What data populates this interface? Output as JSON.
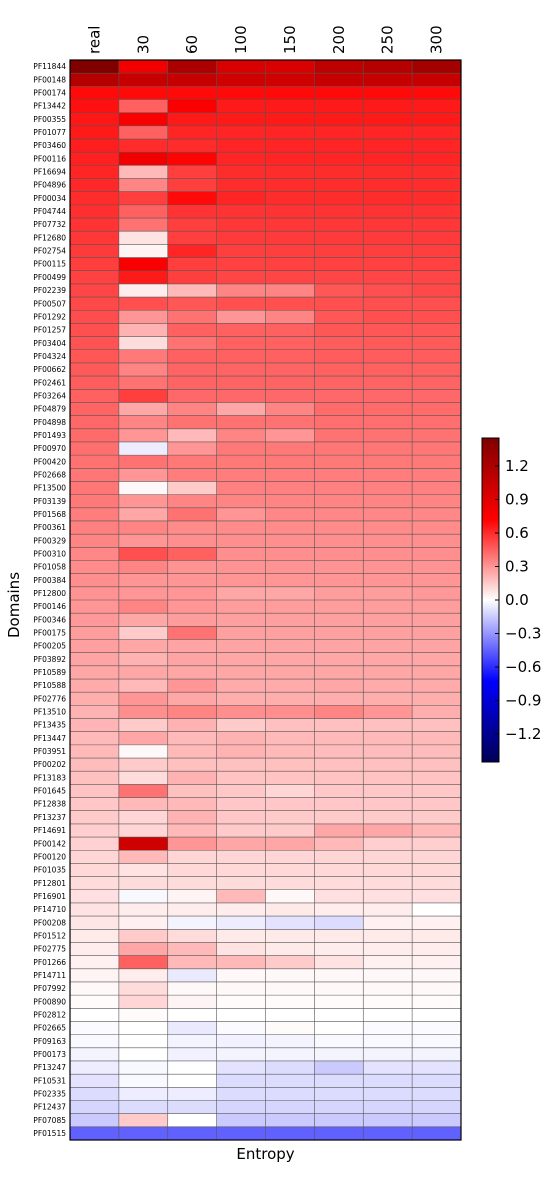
{
  "chart_data": {
    "type": "heatmap",
    "xlabel": "Entropy",
    "ylabel": "Domains",
    "columns": [
      "real",
      "30",
      "60",
      "100",
      "150",
      "200",
      "250",
      "300"
    ],
    "rows": [
      "PF11844",
      "PF00148",
      "PF00174",
      "PF13442",
      "PF00355",
      "PF01077",
      "PF03460",
      "PF00116",
      "PF16694",
      "PF04896",
      "PF00034",
      "PF04744",
      "PF07732",
      "PF12680",
      "PF02754",
      "PF00115",
      "PF00499",
      "PF02239",
      "PF00507",
      "PF01292",
      "PF01257",
      "PF03404",
      "PF04324",
      "PF00662",
      "PF02461",
      "PF03264",
      "PF04879",
      "PF04898",
      "PF01493",
      "PF00970",
      "PF00420",
      "PF02668",
      "PF13500",
      "PF03139",
      "PF01568",
      "PF00361",
      "PF00329",
      "PF00310",
      "PF01058",
      "PF00384",
      "PF12800",
      "PF00146",
      "PF00346",
      "PF00175",
      "PF00205",
      "PF03892",
      "PF10589",
      "PF10588",
      "PF02776",
      "PF13510",
      "PF13435",
      "PF13447",
      "PF03951",
      "PF00202",
      "PF13183",
      "PF01645",
      "PF12838",
      "PF13237",
      "PF14691",
      "PF00142",
      "PF00120",
      "PF01035",
      "PF12801",
      "PF16901",
      "PF14710",
      "PF00208",
      "PF01512",
      "PF02775",
      "PF01266",
      "PF14711",
      "PF07992",
      "PF00890",
      "PF02812",
      "PF02665",
      "PF09163",
      "PF00173",
      "PF13247",
      "PF10531",
      "PF02335",
      "PF12437",
      "PF07085",
      "PF01515"
    ],
    "values": [
      [
        1.45,
        0.8,
        1.2,
        0.95,
        0.95,
        1.1,
        1.15,
        1.25
      ],
      [
        1.15,
        1.05,
        1.05,
        1.0,
        1.0,
        1.05,
        1.05,
        1.05
      ],
      [
        0.7,
        0.7,
        0.7,
        0.7,
        0.7,
        0.7,
        0.7,
        0.7
      ],
      [
        0.68,
        0.45,
        0.75,
        0.65,
        0.65,
        0.65,
        0.65,
        0.65
      ],
      [
        0.66,
        0.75,
        0.65,
        0.65,
        0.65,
        0.65,
        0.65,
        0.65
      ],
      [
        0.65,
        0.45,
        0.62,
        0.62,
        0.62,
        0.62,
        0.62,
        0.62
      ],
      [
        0.64,
        0.6,
        0.6,
        0.62,
        0.62,
        0.62,
        0.62,
        0.62
      ],
      [
        0.63,
        0.8,
        0.72,
        0.62,
        0.62,
        0.62,
        0.62,
        0.62
      ],
      [
        0.62,
        0.2,
        0.55,
        0.6,
        0.6,
        0.6,
        0.6,
        0.6
      ],
      [
        0.61,
        0.35,
        0.55,
        0.6,
        0.6,
        0.6,
        0.6,
        0.6
      ],
      [
        0.6,
        0.55,
        0.7,
        0.62,
        0.6,
        0.6,
        0.6,
        0.6
      ],
      [
        0.59,
        0.45,
        0.58,
        0.58,
        0.58,
        0.58,
        0.58,
        0.58
      ],
      [
        0.58,
        0.4,
        0.55,
        0.57,
        0.57,
        0.57,
        0.57,
        0.57
      ],
      [
        0.57,
        0.08,
        0.55,
        0.56,
        0.56,
        0.56,
        0.56,
        0.56
      ],
      [
        0.56,
        0.03,
        0.62,
        0.55,
        0.55,
        0.55,
        0.55,
        0.55
      ],
      [
        0.55,
        0.75,
        0.55,
        0.54,
        0.54,
        0.54,
        0.54,
        0.54
      ],
      [
        0.54,
        0.65,
        0.55,
        0.53,
        0.53,
        0.53,
        0.53,
        0.53
      ],
      [
        0.53,
        0.05,
        0.2,
        0.35,
        0.35,
        0.48,
        0.5,
        0.52
      ],
      [
        0.52,
        0.5,
        0.48,
        0.5,
        0.5,
        0.5,
        0.5,
        0.5
      ],
      [
        0.51,
        0.3,
        0.4,
        0.3,
        0.35,
        0.48,
        0.5,
        0.5
      ],
      [
        0.5,
        0.22,
        0.45,
        0.45,
        0.45,
        0.48,
        0.48,
        0.48
      ],
      [
        0.49,
        0.1,
        0.4,
        0.45,
        0.45,
        0.46,
        0.47,
        0.47
      ],
      [
        0.48,
        0.38,
        0.45,
        0.45,
        0.45,
        0.46,
        0.46,
        0.46
      ],
      [
        0.47,
        0.35,
        0.44,
        0.44,
        0.44,
        0.45,
        0.45,
        0.45
      ],
      [
        0.46,
        0.4,
        0.44,
        0.44,
        0.44,
        0.44,
        0.44,
        0.44
      ],
      [
        0.45,
        0.55,
        0.43,
        0.43,
        0.43,
        0.43,
        0.43,
        0.43
      ],
      [
        0.44,
        0.25,
        0.35,
        0.25,
        0.35,
        0.42,
        0.42,
        0.42
      ],
      [
        0.43,
        0.35,
        0.4,
        0.4,
        0.4,
        0.41,
        0.41,
        0.41
      ],
      [
        0.42,
        0.3,
        0.2,
        0.35,
        0.3,
        0.4,
        0.4,
        0.4
      ],
      [
        0.41,
        -0.05,
        0.3,
        0.38,
        0.38,
        0.39,
        0.39,
        0.39
      ],
      [
        0.4,
        0.4,
        0.38,
        0.38,
        0.38,
        0.38,
        0.38,
        0.38
      ],
      [
        0.39,
        0.3,
        0.37,
        0.37,
        0.37,
        0.37,
        0.37,
        0.37
      ],
      [
        0.39,
        0.02,
        0.15,
        0.36,
        0.36,
        0.36,
        0.36,
        0.36
      ],
      [
        0.38,
        0.3,
        0.35,
        0.35,
        0.35,
        0.35,
        0.35,
        0.35
      ],
      [
        0.37,
        0.25,
        0.4,
        0.3,
        0.34,
        0.34,
        0.34,
        0.34
      ],
      [
        0.36,
        0.35,
        0.33,
        0.33,
        0.33,
        0.33,
        0.33,
        0.33
      ],
      [
        0.35,
        0.3,
        0.32,
        0.32,
        0.32,
        0.32,
        0.32,
        0.32
      ],
      [
        0.34,
        0.5,
        0.45,
        0.32,
        0.32,
        0.32,
        0.32,
        0.32
      ],
      [
        0.33,
        0.35,
        0.31,
        0.31,
        0.31,
        0.31,
        0.31,
        0.31
      ],
      [
        0.32,
        0.3,
        0.3,
        0.3,
        0.3,
        0.3,
        0.3,
        0.3
      ],
      [
        0.31,
        0.3,
        0.3,
        0.25,
        0.25,
        0.28,
        0.28,
        0.29
      ],
      [
        0.3,
        0.35,
        0.3,
        0.28,
        0.28,
        0.28,
        0.28,
        0.28
      ],
      [
        0.29,
        0.25,
        0.28,
        0.27,
        0.27,
        0.27,
        0.27,
        0.27
      ],
      [
        0.28,
        0.15,
        0.4,
        0.27,
        0.27,
        0.27,
        0.27,
        0.27
      ],
      [
        0.27,
        0.25,
        0.26,
        0.26,
        0.26,
        0.26,
        0.26,
        0.26
      ],
      [
        0.26,
        0.22,
        0.26,
        0.25,
        0.25,
        0.25,
        0.25,
        0.25
      ],
      [
        0.25,
        0.25,
        0.25,
        0.25,
        0.25,
        0.25,
        0.25,
        0.25
      ],
      [
        0.24,
        0.2,
        0.3,
        0.24,
        0.24,
        0.25,
        0.24,
        0.24
      ],
      [
        0.23,
        0.3,
        0.25,
        0.23,
        0.23,
        0.23,
        0.23,
        0.23
      ],
      [
        0.22,
        0.32,
        0.35,
        0.32,
        0.32,
        0.35,
        0.3,
        0.23
      ],
      [
        0.21,
        0.15,
        0.22,
        0.15,
        0.18,
        0.18,
        0.18,
        0.18
      ],
      [
        0.2,
        0.25,
        0.2,
        0.22,
        0.2,
        0.2,
        0.2,
        0.2
      ],
      [
        0.2,
        0.02,
        0.2,
        0.22,
        0.2,
        0.19,
        0.19,
        0.19
      ],
      [
        0.19,
        0.15,
        0.18,
        0.18,
        0.18,
        0.18,
        0.18,
        0.18
      ],
      [
        0.18,
        0.1,
        0.22,
        0.17,
        0.17,
        0.17,
        0.17,
        0.17
      ],
      [
        0.17,
        0.4,
        0.18,
        0.16,
        0.12,
        0.16,
        0.16,
        0.16
      ],
      [
        0.16,
        0.2,
        0.2,
        0.16,
        0.16,
        0.16,
        0.16,
        0.16
      ],
      [
        0.15,
        0.12,
        0.22,
        0.16,
        0.15,
        0.15,
        0.15,
        0.15
      ],
      [
        0.14,
        0.12,
        0.2,
        0.15,
        0.15,
        0.25,
        0.25,
        0.2
      ],
      [
        0.13,
        1.0,
        0.3,
        0.25,
        0.25,
        0.2,
        0.14,
        0.14
      ],
      [
        0.12,
        0.2,
        0.12,
        0.12,
        0.12,
        0.12,
        0.12,
        0.12
      ],
      [
        0.11,
        0.08,
        0.11,
        0.11,
        0.11,
        0.11,
        0.11,
        0.11
      ],
      [
        0.1,
        0.1,
        0.1,
        0.1,
        0.1,
        0.1,
        0.1,
        0.1
      ],
      [
        0.09,
        -0.02,
        0.03,
        0.2,
        0.02,
        0.09,
        0.09,
        0.09
      ],
      [
        0.08,
        0.05,
        0.05,
        0.05,
        0.06,
        0.05,
        0.05,
        0.0
      ],
      [
        0.07,
        0.04,
        -0.03,
        -0.05,
        -0.08,
        -0.1,
        0.04,
        0.04
      ],
      [
        0.06,
        0.15,
        0.1,
        0.06,
        0.06,
        0.06,
        0.06,
        0.06
      ],
      [
        0.05,
        0.25,
        0.2,
        0.08,
        0.06,
        0.05,
        0.05,
        0.05
      ],
      [
        0.04,
        0.45,
        0.2,
        0.2,
        0.15,
        0.08,
        0.04,
        0.04
      ],
      [
        0.03,
        0.05,
        -0.06,
        0.02,
        0.02,
        0.02,
        0.02,
        0.02
      ],
      [
        0.02,
        0.1,
        0.02,
        0.02,
        0.02,
        0.02,
        0.02,
        0.02
      ],
      [
        0.01,
        0.12,
        0.03,
        0.01,
        0.01,
        0.01,
        0.01,
        0.01
      ],
      [
        0.0,
        0.01,
        0.0,
        0.0,
        0.0,
        0.0,
        0.0,
        0.0
      ],
      [
        -0.01,
        0.0,
        -0.06,
        -0.01,
        0.01,
        0.0,
        -0.01,
        -0.01
      ],
      [
        -0.02,
        0.0,
        -0.03,
        -0.04,
        -0.03,
        -0.02,
        -0.02,
        -0.02
      ],
      [
        -0.03,
        0.0,
        -0.04,
        -0.03,
        -0.03,
        -0.03,
        -0.03,
        -0.03
      ],
      [
        -0.05,
        -0.02,
        0.0,
        -0.08,
        -0.1,
        -0.15,
        -0.08,
        -0.08
      ],
      [
        -0.08,
        -0.02,
        0.0,
        -0.1,
        -0.1,
        -0.1,
        -0.1,
        -0.1
      ],
      [
        -0.1,
        -0.05,
        -0.05,
        -0.1,
        -0.1,
        -0.1,
        -0.1,
        -0.1
      ],
      [
        -0.12,
        -0.1,
        -0.1,
        -0.12,
        -0.12,
        -0.12,
        -0.12,
        -0.12
      ],
      [
        -0.15,
        0.15,
        0.0,
        -0.15,
        -0.15,
        -0.15,
        -0.15,
        -0.15
      ],
      [
        -0.45,
        -0.45,
        -0.45,
        -0.45,
        -0.45,
        -0.45,
        -0.45,
        -0.45
      ]
    ],
    "vmin": -1.45,
    "vmax": 1.45,
    "colormap": [
      "#000055",
      "#0000ff",
      "#ffffff",
      "#ff0000",
      "#800000"
    ],
    "colorbar": {
      "ticks": [
        1.2,
        0.9,
        0.6,
        0.3,
        0.0,
        -0.3,
        -0.6,
        -0.9,
        -1.2
      ],
      "tick_labels": [
        "1.2",
        "0.9",
        "0.6",
        "0.3",
        "0.0",
        "−0.3",
        "−0.6",
        "−0.9",
        "−1.2"
      ]
    },
    "grid": true,
    "legend": "none"
  }
}
